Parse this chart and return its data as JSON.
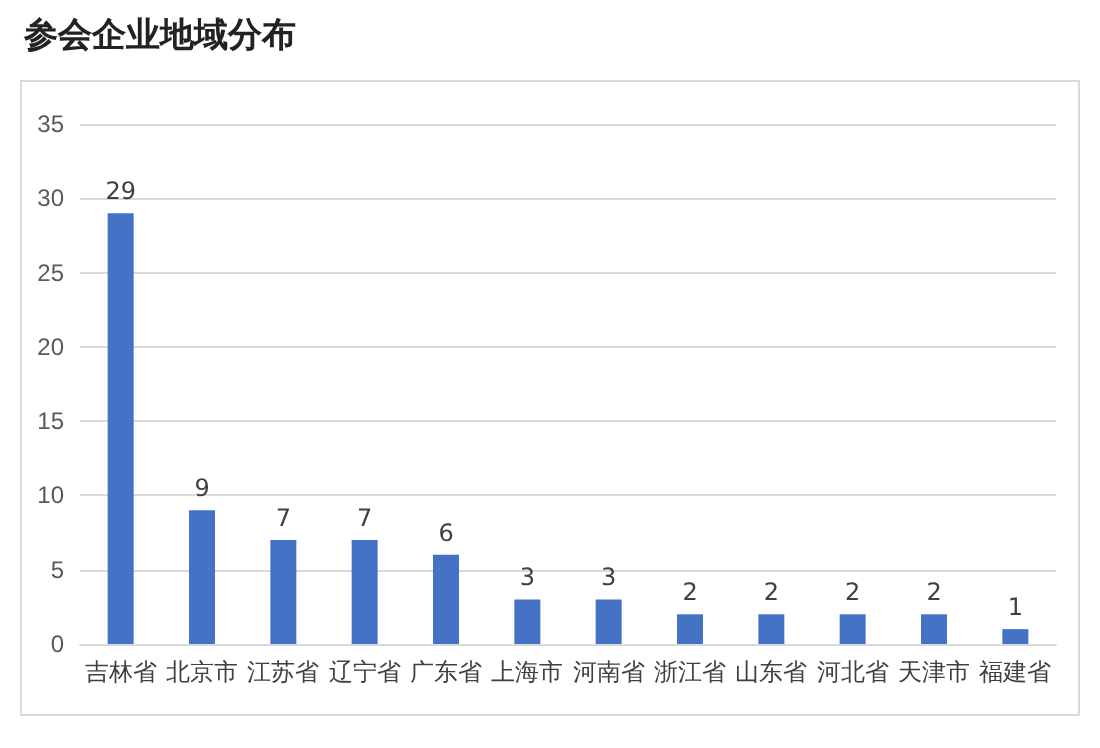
{
  "chart_data": {
    "type": "bar",
    "title": "参会企业地域分布",
    "categories": [
      "吉林省",
      "北京市",
      "江苏省",
      "辽宁省",
      "广东省",
      "上海市",
      "河南省",
      "浙江省",
      "山东省",
      "河北省",
      "天津市",
      "福建省"
    ],
    "values": [
      29,
      9,
      7,
      7,
      6,
      3,
      3,
      2,
      2,
      2,
      2,
      1
    ],
    "color": "#4472c4",
    "ylim": [
      0,
      35
    ],
    "yticks": [
      0,
      5,
      10,
      15,
      20,
      25,
      30,
      35
    ],
    "grid": "y",
    "data_labels": true
  }
}
